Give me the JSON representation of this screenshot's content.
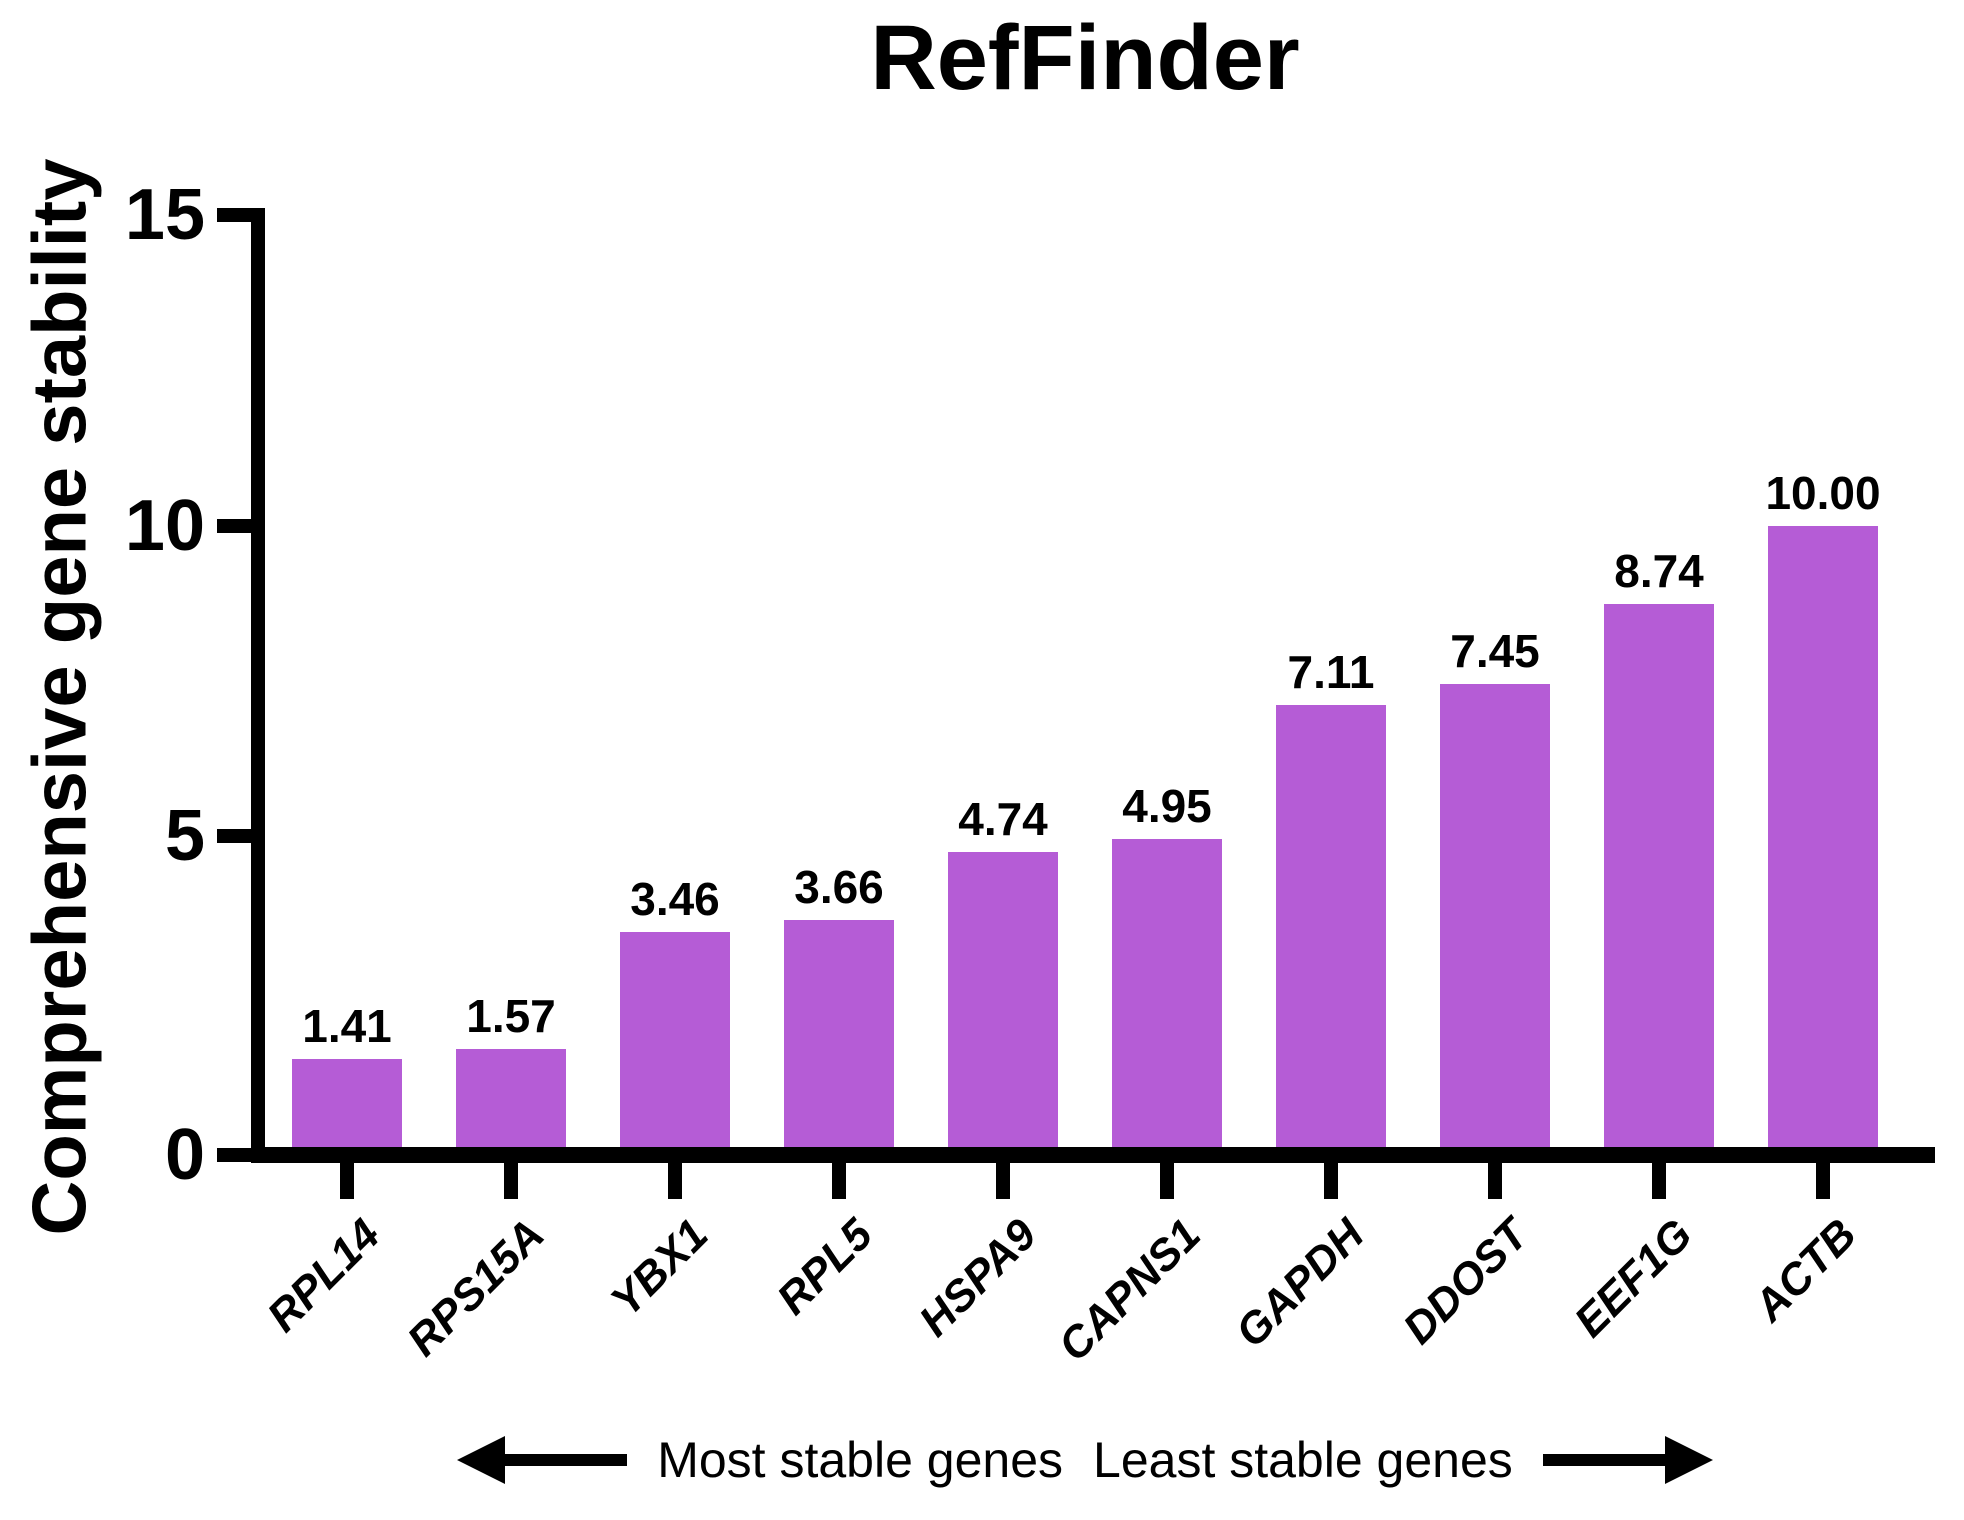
{
  "title": "RefFinder",
  "y_axis": {
    "label": "Comprehensive gene stability",
    "ticks": [
      15,
      10,
      5,
      0
    ],
    "min": 0,
    "max": 15
  },
  "chart_data": {
    "type": "bar",
    "title": "RefFinder",
    "categories": [
      "RPL14",
      "RPS15A",
      "YBX1",
      "RPL5",
      "HSPA9",
      "CAPNS1",
      "GAPDH",
      "DDOST",
      "EEF1G",
      "ACTB"
    ],
    "values": [
      1.41,
      1.57,
      3.46,
      3.66,
      4.74,
      4.95,
      7.11,
      7.45,
      8.74,
      10.0
    ],
    "value_labels": [
      "1.41",
      "1.57",
      "3.46",
      "3.66",
      "4.74",
      "4.95",
      "7.11",
      "7.45",
      "8.74",
      "10.00"
    ],
    "xlabel": "",
    "ylabel": "Comprehensive gene stability",
    "ylim": [
      0,
      15
    ],
    "yticks": [
      0,
      5,
      10,
      15
    ],
    "grid": false,
    "legend": null,
    "bar_color": "#b55cd6",
    "axis_color": "#000000",
    "annotation_left": "Most stable genes",
    "annotation_right": "Least stable genes"
  },
  "footer": {
    "most_stable_label": "Most stable genes",
    "least_stable_label": "Least stable genes"
  }
}
